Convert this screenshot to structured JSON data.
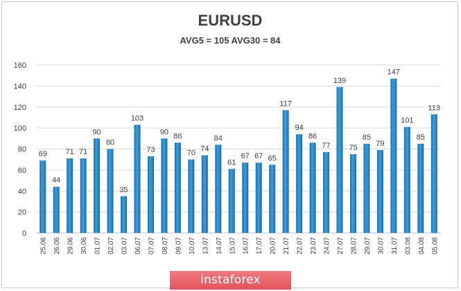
{
  "chart_data": {
    "type": "bar",
    "title": "EURUSD",
    "subtitle": "AVG5 = 105 AVG30 = 84",
    "categories": [
      "25.06",
      "26.06",
      "29.06",
      "30.06",
      "01.07",
      "02.07",
      "03.07",
      "06.07",
      "07.07",
      "08.07",
      "09.07",
      "10.07",
      "13.07",
      "14.07",
      "15.07",
      "16.07",
      "17.07",
      "20.07",
      "21.07",
      "22.07",
      "23.07",
      "24.07",
      "27.07",
      "28.07",
      "29.07",
      "30.07",
      "31.07",
      "03.08",
      "04.08",
      "05.08"
    ],
    "values": [
      69,
      44,
      71,
      71,
      90,
      80,
      35,
      103,
      73,
      90,
      86,
      70,
      74,
      84,
      61,
      67,
      67,
      65,
      117,
      94,
      86,
      77,
      139,
      75,
      85,
      79,
      147,
      101,
      85,
      113
    ],
    "ylim": [
      0,
      160
    ],
    "yticks": [
      0,
      20,
      40,
      60,
      80,
      100,
      120,
      140,
      160
    ],
    "grid": true,
    "bar_color": "#2e8fd0"
  },
  "watermark": "instaforex"
}
